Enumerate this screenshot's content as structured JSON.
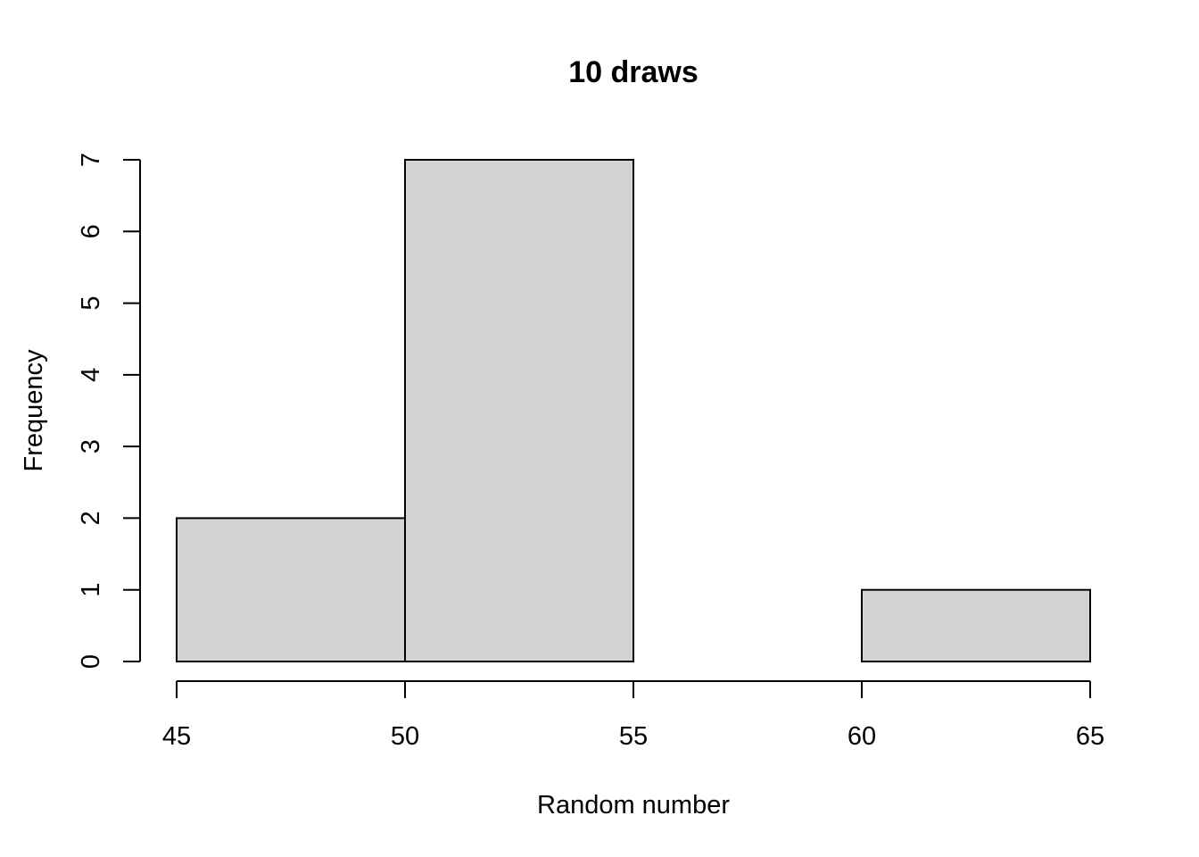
{
  "chart_data": {
    "type": "bar",
    "title": "10 draws",
    "xlabel": "Random number",
    "ylabel": "Frequency",
    "bins": [
      {
        "from": 45,
        "to": 50,
        "count": 2
      },
      {
        "from": 50,
        "to": 55,
        "count": 7
      },
      {
        "from": 55,
        "to": 60,
        "count": 0
      },
      {
        "from": 60,
        "to": 65,
        "count": 1
      }
    ],
    "x_ticks": [
      45,
      50,
      55,
      60,
      65
    ],
    "y_ticks": [
      0,
      1,
      2,
      3,
      4,
      5,
      6,
      7
    ],
    "xlim": [
      45,
      65
    ],
    "ylim": [
      0,
      7
    ],
    "bar_fill": "#d3d3d3",
    "bar_stroke": "#000000",
    "grid": false
  }
}
